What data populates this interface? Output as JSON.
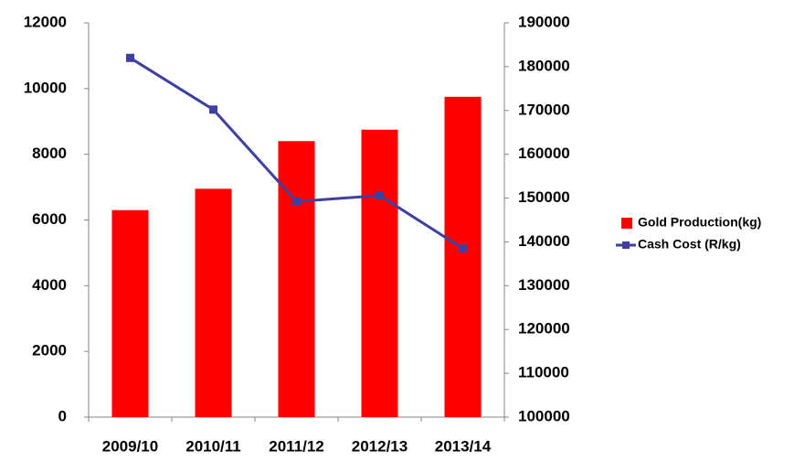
{
  "chart_data": {
    "type": "combo",
    "categories": [
      "2009/10",
      "2010/11",
      "2011/12",
      "2012/13",
      "2013/14"
    ],
    "series": [
      {
        "name": "Gold Production(kg)",
        "type": "bar",
        "color": "#ff0000",
        "values": [
          6300,
          6950,
          8400,
          8750,
          9750
        ]
      },
      {
        "name": "Cash Cost (R/kg)",
        "type": "line",
        "axis": "y2",
        "color": "#3f3f9f",
        "values": [
          182000,
          170200,
          149200,
          150600,
          138500
        ]
      }
    ],
    "ylim": [
      0,
      12000
    ],
    "yticks": [
      0,
      2000,
      4000,
      6000,
      8000,
      10000,
      12000
    ],
    "y2lim": [
      100000,
      190000
    ],
    "y2ticks": [
      100000,
      110000,
      120000,
      130000,
      140000,
      150000,
      160000,
      170000,
      180000,
      190000
    ],
    "grid": false,
    "legend": "right"
  }
}
